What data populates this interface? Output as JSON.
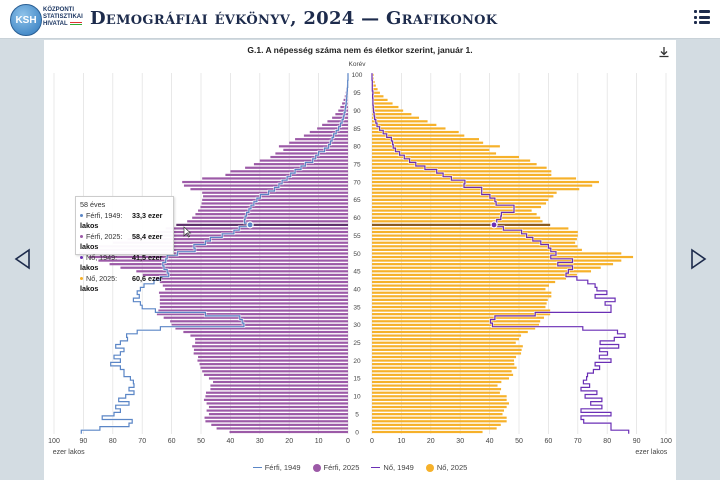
{
  "header": {
    "logo_abbr": "KSH",
    "logo_lines": [
      "KÖZPONTI",
      "STATISZTIKAI",
      "HIVATAL"
    ],
    "title": "Demográfiai évkönyv, 2024 — Grafikonok"
  },
  "colors": {
    "male_2025": "#9c5aa7",
    "male_2025_highlight": "#5e2f6b",
    "female_2025": "#f6b12a",
    "female_2025_highlight": "#8a5a1c",
    "male_1949": "#5b86c6",
    "female_1949": "#6a2fb5"
  },
  "tooltip": {
    "heading": "58 éves",
    "rows": [
      {
        "label": "Férfi, 1949:",
        "value": "33,3 ezer lakos"
      },
      {
        "label": "Férfi, 2025:",
        "value": "58,4 ezer lakos"
      },
      {
        "label": "Nő, 1949:",
        "value": "41,5 ezer lakos"
      },
      {
        "label": "Nő, 2025:",
        "value": "60,6 ezer lakos"
      }
    ]
  },
  "chart_data": {
    "type": "bar",
    "subtype": "population-pyramid",
    "title": "G.1. A népesség száma nem és életkor szerint, január 1.",
    "ylabel": "Korév",
    "xlabel_left": "ezer lakos",
    "xlabel_right": "ezer lakos",
    "xlim": [
      0,
      100
    ],
    "ylim": [
      0,
      100
    ],
    "x_ticks_left": [
      "100",
      "90",
      "80",
      "70",
      "60",
      "50",
      "40",
      "30",
      "20",
      "10",
      "0"
    ],
    "x_ticks_right": [
      "0",
      "10",
      "20",
      "30",
      "40",
      "50",
      "60",
      "70",
      "80",
      "90",
      "100"
    ],
    "y_ticks": [
      "0",
      "5",
      "10",
      "15",
      "20",
      "25",
      "30",
      "35",
      "40",
      "45",
      "50",
      "55",
      "60",
      "65",
      "70",
      "75",
      "80",
      "85",
      "90",
      "95",
      "100"
    ],
    "grid": true,
    "legend_position": "bottom",
    "highlighted_age": 58,
    "ages_note_order": "values indexed by age 0..100",
    "series": [
      {
        "name": "Férfi, 1949",
        "kind": "line",
        "side": "left",
        "values": [
          90.7,
          84.4,
          74.5,
          73.4,
          83.6,
          79.6,
          77.4,
          79,
          74.5,
          78,
          75.6,
          72.8,
          74.5,
          72.8,
          73,
          74,
          76.2,
          76.2,
          77.4,
          80.7,
          77.4,
          79.6,
          77.4,
          76.2,
          79,
          77.4,
          75,
          75.3,
          71.7,
          63.8,
          35.4,
          36,
          36.8,
          48.5,
          65.5,
          70,
          70.6,
          73,
          71,
          71.7,
          70.6,
          69.4,
          66,
          63.8,
          61,
          61.5,
          62.6,
          63,
          62,
          61.5,
          58,
          52,
          52.4,
          48.5,
          46.8,
          42.8,
          38.8,
          37,
          33.3,
          35.2,
          35,
          34.5,
          33.7,
          33,
          32,
          31,
          29.8,
          27,
          25,
          23.5,
          22.4,
          20.7,
          19.5,
          18,
          16,
          14.5,
          12,
          11,
          10,
          8,
          6.6,
          6,
          5.4,
          4.9,
          4,
          3.2,
          2.6,
          2,
          1.6,
          1.3,
          1,
          0.8,
          0.6,
          0.5,
          0.4,
          0.3,
          0.2,
          0.1,
          0.1,
          0,
          0
        ]
      },
      {
        "name": "Férfi, 2025",
        "kind": "bar",
        "side": "left",
        "values": [
          40.3,
          44.7,
          46.5,
          48.5,
          48.8,
          47.3,
          48.1,
          47.3,
          48.1,
          49,
          48.5,
          48.3,
          46.8,
          46.8,
          45.9,
          47.3,
          49,
          49.6,
          50.2,
          50.5,
          51.2,
          51,
          52.5,
          52.4,
          53,
          52,
          52,
          53.6,
          56,
          58.7,
          60,
          60.5,
          62.7,
          65,
          64.5,
          64,
          64,
          64,
          64,
          64.3,
          62.2,
          63,
          64,
          65.4,
          69.8,
          72,
          77.4,
          81.1,
          84.9,
          88.1,
          91.5,
          89,
          85,
          80,
          75,
          70,
          66,
          62,
          58.4,
          54.7,
          53,
          51.9,
          51,
          50.2,
          49.8,
          49.6,
          49.3,
          49.6,
          53.6,
          55.8,
          56.4,
          49.6,
          41.7,
          40,
          35,
          32,
          30,
          26.4,
          24.7,
          22,
          23.5,
          20,
          18,
          15,
          13,
          10.5,
          8.8,
          7,
          5.4,
          4.3,
          3.3,
          2.6,
          2,
          1.5,
          1.1,
          0.8,
          0.6,
          0.4,
          0.3,
          0.2,
          0.2
        ]
      },
      {
        "name": "Nő, 1949",
        "kind": "line",
        "side": "right",
        "values": [
          87.3,
          81.3,
          81.3,
          72,
          71.1,
          81.3,
          71.1,
          78.2,
          74.4,
          78.2,
          72.5,
          76.5,
          71.1,
          74,
          71.9,
          73,
          73.3,
          75.3,
          77.4,
          75.9,
          81.3,
          77.3,
          80.1,
          77.4,
          83.9,
          77.6,
          82.4,
          86.1,
          83.5,
          71.7,
          41,
          40.3,
          41.8,
          55.5,
          81.3,
          81.3,
          79.3,
          82.7,
          75.9,
          79.9,
          76.5,
          75.9,
          73.4,
          69.7,
          66,
          66.8,
          68.2,
          63.2,
          68.2,
          60.8,
          62.6,
          60.8,
          60,
          57.4,
          54.7,
          52.6,
          50.9,
          44.7,
          41.5,
          42.4,
          43.8,
          44,
          48.3,
          48.3,
          42.2,
          41.8,
          40.1,
          37.3,
          37.3,
          31.3,
          31.6,
          27,
          24.2,
          22,
          18,
          14.9,
          12.8,
          11,
          9.4,
          8,
          7.2,
          7,
          6.6,
          5,
          3.8,
          2.6,
          1.7,
          1.3,
          0.9,
          0.7,
          0.5,
          0.4,
          0.3,
          0.3,
          0.2,
          0.3,
          0.1,
          0.1,
          0.1,
          0,
          0
        ]
      },
      {
        "name": "Nő, 2025",
        "kind": "bar",
        "side": "right",
        "values": [
          37.6,
          42.4,
          43.8,
          45.8,
          45.8,
          44.4,
          44.9,
          45.8,
          46.6,
          45.8,
          45.8,
          43.5,
          43.9,
          42.7,
          44,
          46.6,
          48,
          47.5,
          49.2,
          48.4,
          48.3,
          49,
          50.7,
          50.9,
          51.3,
          48.9,
          50,
          50.7,
          53,
          55.5,
          56.8,
          57.2,
          58.5,
          60.6,
          60.6,
          59,
          59.4,
          59.8,
          61,
          61,
          59,
          60.2,
          62.3,
          66,
          69.7,
          74.5,
          77.8,
          82,
          84.8,
          88.8,
          84.8,
          71.4,
          69.9,
          69.1,
          69.7,
          70,
          70,
          66.8,
          60.6,
          58,
          57.2,
          56,
          54.3,
          57.5,
          59.2,
          60,
          61.7,
          62.8,
          70.5,
          74.9,
          77.2,
          69.4,
          61,
          61,
          59.4,
          56,
          53.8,
          50,
          42.2,
          39.9,
          43.5,
          37.8,
          36.4,
          31.4,
          29.5,
          25,
          21.9,
          18.9,
          16,
          13.4,
          10.6,
          9,
          7,
          5.3,
          3.9,
          2.7,
          1.9,
          1.3,
          0.9,
          0.6,
          0.6
        ]
      }
    ]
  }
}
